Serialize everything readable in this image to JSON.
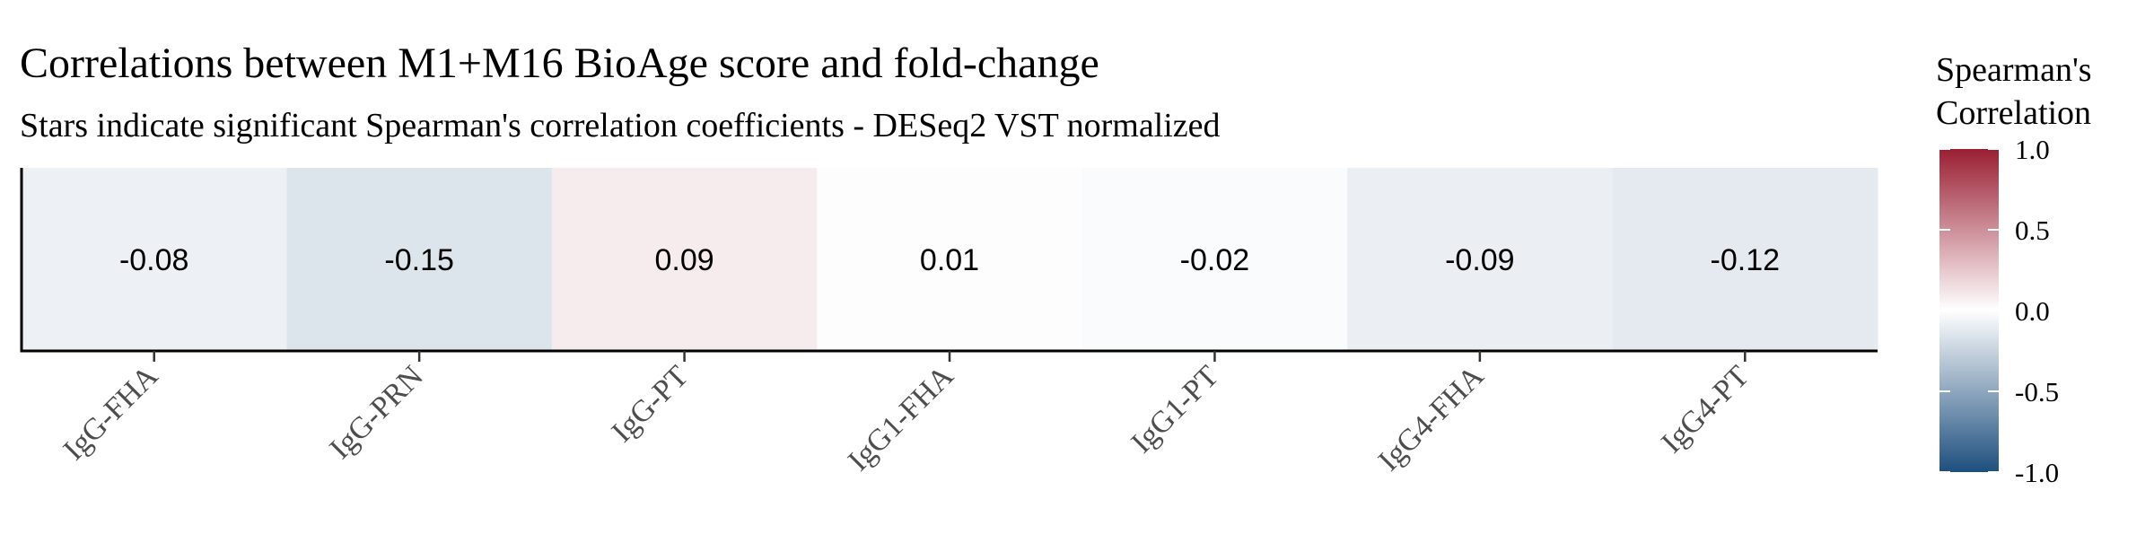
{
  "chart_data": {
    "type": "heatmap",
    "title": "Correlations between M1+M16 BioAge score and fold-change",
    "subtitle": "Stars indicate significant Spearman's correlation coefficients - DESeq2 VST normalized",
    "xlabel": "",
    "ylabel": "",
    "categories": [
      "IgG-FHA",
      "IgG-PRN",
      "IgG-PT",
      "IgG1-FHA",
      "IgG1-PT",
      "IgG4-FHA",
      "IgG4-PT"
    ],
    "values": [
      -0.08,
      -0.15,
      0.09,
      0.01,
      -0.02,
      -0.09,
      -0.12
    ],
    "value_labels": [
      "-0.08",
      "-0.15",
      "0.09",
      "0.01",
      "-0.02",
      "-0.09",
      "-0.12"
    ],
    "significant": [
      false,
      false,
      false,
      false,
      false,
      false,
      false
    ],
    "color_scale": {
      "min": -1.0,
      "max": 1.0,
      "low_color": "#1d4f7e",
      "mid_color": "#ffffff",
      "high_color": "#9a1f33"
    },
    "legend": {
      "title_lines": [
        "Spearman's",
        "Correlation"
      ],
      "ticks": [
        1.0,
        0.5,
        0.0,
        -0.5,
        -1.0
      ],
      "tick_labels": [
        "1.0",
        "0.5",
        "0.0",
        "-0.5",
        "-1.0"
      ],
      "placement": "right"
    },
    "grid": false
  }
}
